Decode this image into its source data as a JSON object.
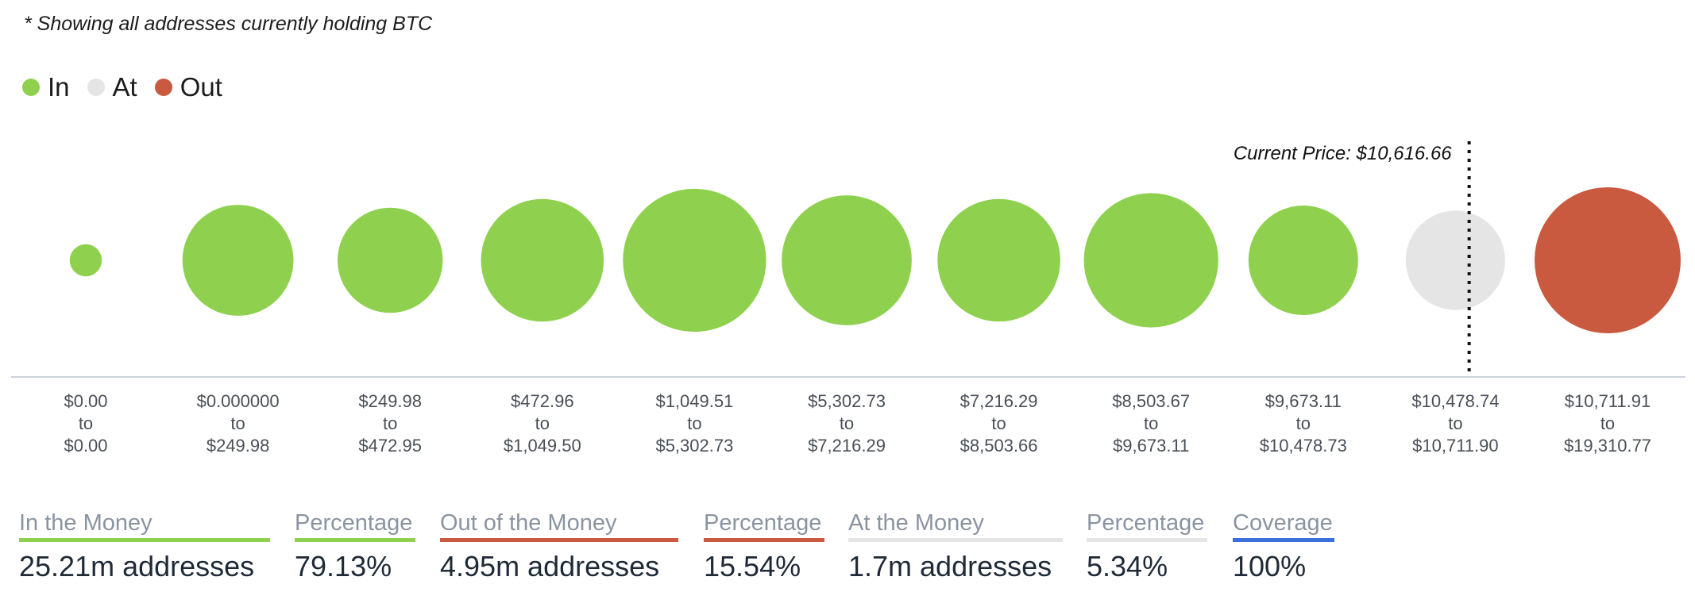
{
  "note": "* Showing all addresses currently holding BTC",
  "legend": {
    "items": [
      {
        "label": "In",
        "color": "#8fd14f"
      },
      {
        "label": "At",
        "color": "#e5e5e5"
      },
      {
        "label": "Out",
        "color": "#c95a40"
      }
    ]
  },
  "colors": {
    "in": "#8fd14f",
    "at": "#e5e5e5",
    "out": "#c95a40",
    "coverage": "#3b6fdc",
    "head_text": "#8a94a0"
  },
  "chart_data": {
    "type": "bubble",
    "current_price_label": "Current Price: $10,616.66",
    "buckets": [
      {
        "from": "$0.00",
        "to_word": "to",
        "to": "$0.00",
        "status": "in",
        "relative_size": 0.22
      },
      {
        "from": "$0.000000",
        "to_word": "to",
        "to": "$249.98",
        "status": "in",
        "relative_size": 0.76
      },
      {
        "from": "$249.98",
        "to_word": "to",
        "to": "$472.95",
        "status": "in",
        "relative_size": 0.72
      },
      {
        "from": "$472.96",
        "to_word": "to",
        "to": "$1,049.50",
        "status": "in",
        "relative_size": 0.84
      },
      {
        "from": "$1,049.51",
        "to_word": "to",
        "to": "$5,302.73",
        "status": "in",
        "relative_size": 0.98
      },
      {
        "from": "$5,302.73",
        "to_word": "to",
        "to": "$7,216.29",
        "status": "in",
        "relative_size": 0.89
      },
      {
        "from": "$7,216.29",
        "to_word": "to",
        "to": "$8,503.66",
        "status": "in",
        "relative_size": 0.84
      },
      {
        "from": "$8,503.67",
        "to_word": "to",
        "to": "$9,673.11",
        "status": "in",
        "relative_size": 0.92
      },
      {
        "from": "$9,673.11",
        "to_word": "to",
        "to": "$10,478.73",
        "status": "in",
        "relative_size": 0.75
      },
      {
        "from": "$10,478.74",
        "to_word": "to",
        "to": "$10,711.90",
        "status": "at",
        "relative_size": 0.68
      },
      {
        "from": "$10,711.91",
        "to_word": "to",
        "to": "$19,310.77",
        "status": "out",
        "relative_size": 1.0
      }
    ]
  },
  "summary": {
    "in_money": {
      "label": "In the Money",
      "value": "25.21m addresses"
    },
    "in_pct": {
      "label": "Percentage",
      "value": "79.13%"
    },
    "out_money": {
      "label": "Out of the Money",
      "value": "4.95m addresses"
    },
    "out_pct": {
      "label": "Percentage",
      "value": "15.54%"
    },
    "at_money": {
      "label": "At the Money",
      "value": "1.7m addresses"
    },
    "at_pct": {
      "label": "Percentage",
      "value": "5.34%"
    },
    "coverage": {
      "label": "Coverage",
      "value": "100%"
    }
  }
}
